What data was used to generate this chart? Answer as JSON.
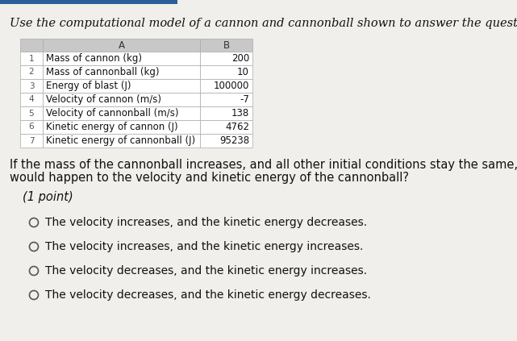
{
  "title_text": "Use the computational model of a cannon and cannonball shown to answer the question belo",
  "table_headers": [
    "",
    "A",
    "B"
  ],
  "table_rows": [
    [
      "1",
      "Mass of cannon (kg)",
      "200"
    ],
    [
      "2",
      "Mass of cannonball (kg)",
      "10"
    ],
    [
      "3",
      "Energy of blast (J)",
      "100000"
    ],
    [
      "4",
      "Velocity of cannon (m/s)",
      "-7"
    ],
    [
      "5",
      "Velocity of cannonball (m/s)",
      "138"
    ],
    [
      "6",
      "Kinetic energy of cannon (J)",
      "4762"
    ],
    [
      "7",
      "Kinetic energy of cannonball (J)",
      "95238"
    ]
  ],
  "question_line1": "If the mass of the cannonball increases, and all other initial conditions stay the same, what",
  "question_line2": "would happen to the velocity and kinetic energy of the cannonball?",
  "point_label": "(1 point)",
  "choices": [
    "The velocity increases, and the kinetic energy decreases.",
    "The velocity increases, and the kinetic energy increases.",
    "The velocity decreases, and the kinetic energy increases.",
    "The velocity decreases, and the kinetic energy decreases."
  ],
  "bg_color": "#f0efeb",
  "table_bg_even": "#ffffff",
  "table_bg_odd": "#ffffff",
  "header_bg": "#c8c8c8",
  "border_color": "#aaaaaa",
  "accent_color": "#2a6099",
  "title_fontsize": 10.5,
  "question_fontsize": 10.5,
  "table_fontsize": 8.5,
  "choice_fontsize": 10.0,
  "point_fontsize": 10.5
}
